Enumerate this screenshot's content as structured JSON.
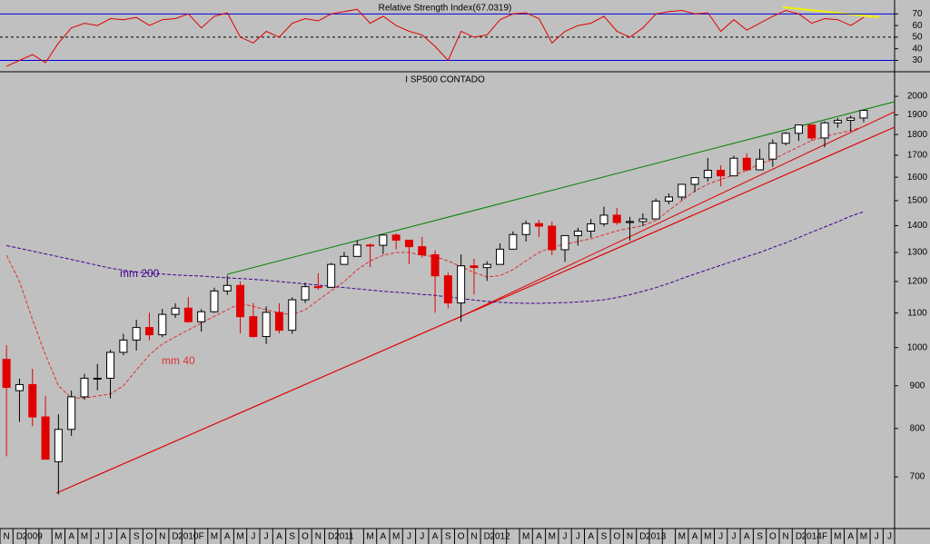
{
  "chart_data": [
    {
      "type": "line",
      "title": "Relative Strength Index(67.0319)",
      "color": "#e00000",
      "ylim": [
        21,
        82
      ],
      "yticks": [
        70,
        60,
        50,
        40,
        30
      ],
      "hlines": [
        70,
        30
      ],
      "hline_color": "#0000e0",
      "dashed_hlines": [
        50
      ],
      "values": [
        25,
        30,
        35,
        28,
        45,
        58,
        62,
        60,
        66,
        65,
        67,
        60,
        65,
        66,
        70,
        58,
        68,
        71,
        50,
        45,
        55,
        50,
        62,
        66,
        64,
        70,
        72,
        74,
        62,
        68,
        60,
        55,
        52,
        42,
        30,
        55,
        50,
        52,
        65,
        70,
        71,
        66,
        45,
        55,
        60,
        62,
        68,
        55,
        50,
        58,
        70,
        72,
        73,
        70,
        71,
        55,
        65,
        56,
        62,
        68,
        73,
        70,
        62,
        66,
        65,
        60,
        67,
        null,
        null
      ]
    },
    {
      "type": "candlestick",
      "title": "I SP500 CONTADO",
      "log_scale": true,
      "ylim": [
        607,
        2135
      ],
      "yticks": [
        2000,
        1900,
        1800,
        1700,
        1600,
        1500,
        1400,
        1300,
        1200,
        1100,
        1000,
        900,
        800,
        700
      ],
      "up_color": "#000000",
      "down_color": "#e00000",
      "categories": [
        "N",
        "D",
        "2009",
        null,
        "M",
        "A",
        "M",
        "J",
        "J",
        "A",
        "S",
        "O",
        "N",
        "D",
        "2010",
        "F",
        "M",
        "A",
        "M",
        "J",
        "J",
        "A",
        "S",
        "O",
        "N",
        "D",
        "2011",
        null,
        "M",
        "A",
        "M",
        "J",
        "J",
        "A",
        "S",
        "O",
        "N",
        "D",
        "2012",
        null,
        "M",
        "A",
        "M",
        "J",
        "J",
        "A",
        "S",
        "O",
        "N",
        "D",
        "2013",
        null,
        "M",
        "A",
        "M",
        "J",
        "J",
        "A",
        "S",
        "O",
        "N",
        "D",
        "2014",
        "F",
        "M",
        "A",
        "M",
        "J",
        "J"
      ],
      "open": [
        968,
        888,
        903,
        826,
        730,
        798,
        873,
        919,
        919,
        987,
        1021,
        1057,
        1036,
        1096,
        1115,
        1074,
        1104,
        1169,
        1187,
        1089,
        1031,
        1102,
        1049,
        1141,
        1183,
        1181,
        1258,
        1286,
        1327,
        1326,
        1364,
        1345,
        1321,
        1292,
        1219,
        1131,
        1253,
        1247,
        1258,
        1312,
        1366,
        1408,
        1398,
        1310,
        1362,
        1379,
        1407,
        1441,
        1412,
        1416,
        1426,
        1498,
        1515,
        1569,
        1598,
        1631,
        1606,
        1686,
        1633,
        1682,
        1757,
        1806,
        1848,
        1783,
        1859,
        1872,
        1884,
        null,
        null
      ],
      "high": [
        1007,
        918,
        943,
        875,
        832,
        888,
        930,
        956,
        994,
        1039,
        1080,
        1101,
        1113,
        1130,
        1150,
        1112,
        1180,
        1220,
        1200,
        1131,
        1120,
        1130,
        1149,
        1196,
        1228,
        1263,
        1302,
        1345,
        1333,
        1364,
        1371,
        1346,
        1357,
        1308,
        1230,
        1293,
        1278,
        1269,
        1333,
        1378,
        1420,
        1422,
        1415,
        1363,
        1392,
        1426,
        1475,
        1470,
        1434,
        1448,
        1509,
        1530,
        1570,
        1597,
        1687,
        1654,
        1698,
        1709,
        1730,
        1776,
        1813,
        1849,
        1851,
        1867,
        1884,
        1897,
        1924,
        null,
        null
      ],
      "low": [
        741,
        815,
        805,
        735,
        667,
        784,
        866,
        889,
        869,
        979,
        992,
        1020,
        1029,
        1085,
        1071,
        1045,
        1101,
        1157,
        1040,
        1028,
        1010,
        1040,
        1039,
        1131,
        1173,
        1181,
        1257,
        1289,
        1249,
        1294,
        1311,
        1259,
        1282,
        1101,
        1114,
        1074,
        1158,
        1202,
        1258,
        1311,
        1340,
        1357,
        1291,
        1267,
        1325,
        1354,
        1397,
        1403,
        1343,
        1398,
        1426,
        1485,
        1501,
        1536,
        1581,
        1560,
        1605,
        1627,
        1633,
        1647,
        1747,
        1768,
        1770,
        1738,
        1834,
        1815,
        1862,
        null,
        null
      ],
      "close": [
        896,
        903,
        826,
        735,
        798,
        873,
        919,
        919,
        987,
        1021,
        1057,
        1036,
        1096,
        1115,
        1074,
        1104,
        1169,
        1187,
        1089,
        1031,
        1102,
        1049,
        1141,
        1183,
        1181,
        1258,
        1286,
        1327,
        1326,
        1364,
        1345,
        1321,
        1292,
        1219,
        1131,
        1253,
        1247,
        1258,
        1312,
        1366,
        1408,
        1398,
        1310,
        1362,
        1379,
        1407,
        1441,
        1412,
        1416,
        1426,
        1498,
        1515,
        1569,
        1598,
        1631,
        1606,
        1686,
        1633,
        1682,
        1757,
        1806,
        1848,
        1783,
        1859,
        1872,
        1884,
        1924,
        null,
        null
      ],
      "series": [
        {
          "name": "mm 200",
          "color": "#400090",
          "values": [
            1325,
            1315,
            1305,
            1295,
            1285,
            1275,
            1265,
            1255,
            1245,
            1238,
            1232,
            1228,
            1225,
            1222,
            1220,
            1218,
            1215,
            1212,
            1210,
            1207,
            1204,
            1200,
            1196,
            1192,
            1188,
            1184,
            1180,
            1176,
            1172,
            1168,
            1165,
            1162,
            1158,
            1155,
            1150,
            1145,
            1140,
            1136,
            1133,
            1131,
            1130,
            1130,
            1131,
            1132,
            1134,
            1137,
            1141,
            1148,
            1157,
            1168,
            1180,
            1194,
            1210,
            1225,
            1240,
            1255,
            1270,
            1285,
            1300,
            1318,
            1335,
            1355,
            1375,
            1395,
            1415,
            1437,
            1455,
            null,
            null
          ]
        },
        {
          "name": "mm 40",
          "color": "#e03030",
          "values": [
            1290,
            1200,
            1080,
            980,
            900,
            870,
            870,
            875,
            880,
            900,
            940,
            980,
            1010,
            1030,
            1050,
            1070,
            1090,
            1110,
            1130,
            1120,
            1110,
            1100,
            1095,
            1110,
            1140,
            1170,
            1200,
            1240,
            1270,
            1290,
            1300,
            1300,
            1290,
            1285,
            1270,
            1250,
            1230,
            1215,
            1220,
            1240,
            1270,
            1300,
            1320,
            1330,
            1340,
            1350,
            1365,
            1380,
            1390,
            1400,
            1420,
            1460,
            1500,
            1540,
            1570,
            1590,
            1610,
            1630,
            1660,
            1680,
            1710,
            1740,
            1770,
            1790,
            1805,
            1820,
            1840,
            null,
            null
          ]
        }
      ]
    }
  ]
}
